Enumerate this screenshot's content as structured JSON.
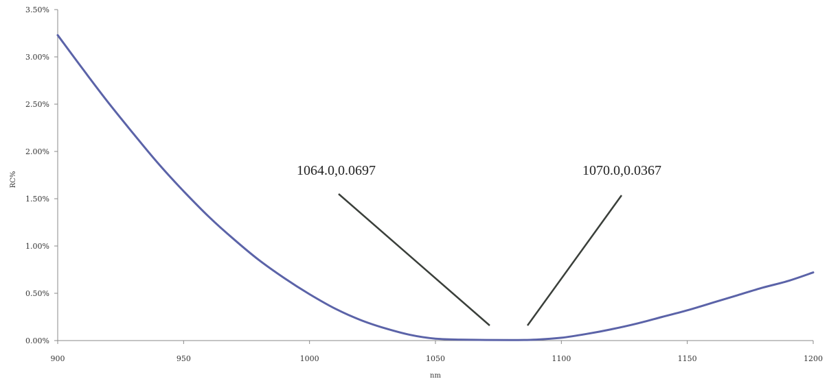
{
  "chart_data": {
    "type": "line",
    "title": "",
    "xlabel": "nm",
    "ylabel": "RC%",
    "xlim": [
      900,
      1200
    ],
    "ylim": [
      0,
      3.5
    ],
    "x_ticks": [
      "900",
      "950",
      "1000",
      "1050",
      "1100",
      "1150",
      "1200"
    ],
    "y_ticks": [
      "0.00%",
      "0.50%",
      "1.00%",
      "1.50%",
      "2.00%",
      "2.50%",
      "3.00%",
      "3.50%"
    ],
    "grid": false,
    "legend": "none",
    "series": [
      {
        "color": "#5b63a8",
        "x": [
          900,
          910,
          920,
          930,
          940,
          950,
          960,
          970,
          980,
          990,
          1000,
          1010,
          1020,
          1030,
          1040,
          1050,
          1060,
          1064,
          1070,
          1080,
          1090,
          1100,
          1110,
          1120,
          1130,
          1140,
          1150,
          1160,
          1170,
          1180,
          1190,
          1200
        ],
        "y": [
          3.23,
          2.87,
          2.52,
          2.19,
          1.87,
          1.58,
          1.31,
          1.07,
          0.85,
          0.66,
          0.49,
          0.34,
          0.22,
          0.13,
          0.06,
          0.02,
          0.01,
          0.0697,
          0.0367,
          0.005,
          0.01,
          0.03,
          0.07,
          0.12,
          0.18,
          0.25,
          0.32,
          0.4,
          0.48,
          0.56,
          0.63,
          0.72
        ]
      }
    ],
    "annotations": [
      {
        "text": "1064.0,0.0697",
        "x": 1064.0,
        "y": 0.0697
      },
      {
        "text": "1070.0,0.0367",
        "x": 1070.0,
        "y": 0.0367
      }
    ]
  }
}
